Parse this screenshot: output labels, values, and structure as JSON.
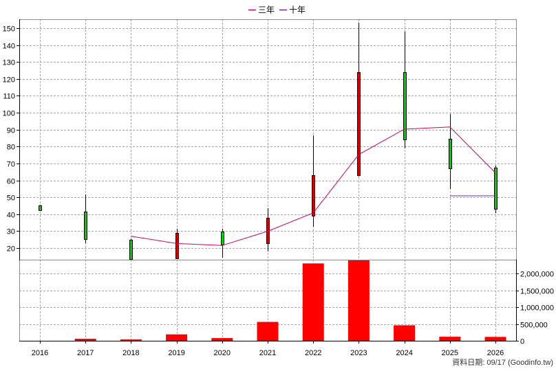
{
  "chart_data": {
    "type": "candlestick",
    "categories": [
      "2016",
      "2017",
      "2018",
      "2019",
      "2020",
      "2021",
      "2022",
      "2023",
      "2024",
      "2025",
      "2026"
    ],
    "ohlc": [
      {
        "open": 45.2,
        "high": 45.5,
        "low": 42.0,
        "close": 42.3
      },
      {
        "open": 41.5,
        "high": 51.7,
        "low": 22.8,
        "close": 25.3
      },
      {
        "open": 24.9,
        "high": 25.6,
        "low": 13.2,
        "close": 13.5
      },
      {
        "open": 13.9,
        "high": 31.4,
        "low": 13.5,
        "close": 28.9
      },
      {
        "open": 29.7,
        "high": 31.4,
        "low": 14.3,
        "close": 22.0
      },
      {
        "open": 22.8,
        "high": 43.6,
        "low": 18.0,
        "close": 37.9
      },
      {
        "open": 39.1,
        "high": 86.6,
        "low": 32.6,
        "close": 63.1
      },
      {
        "open": 63.1,
        "high": 153.3,
        "low": 62.3,
        "close": 124.0
      },
      {
        "open": 124.0,
        "high": 148.0,
        "low": 78.9,
        "close": 84.2
      },
      {
        "open": 84.6,
        "high": 99.2,
        "low": 54.9,
        "close": 67.1
      },
      {
        "open": 67.5,
        "high": 68.7,
        "low": 40.7,
        "close": 43.2
      }
    ],
    "series": [
      {
        "name": "三年",
        "type": "line",
        "color": "#cc0066",
        "values": [
          null,
          null,
          27.0,
          22.7,
          21.5,
          29.9,
          40.8,
          75.3,
          90.3,
          91.6,
          64.5
        ]
      },
      {
        "name": "十年",
        "type": "line",
        "color": "#6a2ca0",
        "values": [
          null,
          null,
          null,
          null,
          null,
          null,
          null,
          null,
          null,
          50.9,
          50.9
        ]
      }
    ],
    "ylim": [
      13.1,
      155.3
    ],
    "yticks": [
      150,
      140,
      130,
      120,
      110,
      100,
      90,
      80,
      70,
      60,
      50,
      40,
      30,
      20
    ],
    "ytick_labels": [
      "150",
      "140",
      "130",
      "120",
      "110",
      "100",
      "90",
      "80",
      "70",
      "60",
      "50",
      "40",
      "30",
      "20"
    ],
    "colors": {
      "up": "#d00000",
      "down": "#00d000",
      "wick": "#000000"
    },
    "grid": true,
    "legend": "top-center",
    "volume": {
      "type": "bar",
      "values": [
        0,
        60000,
        40000,
        190000,
        80000,
        560000,
        2300000,
        2390000,
        460000,
        120000,
        115000
      ],
      "color": "#ff0000",
      "ylim": [
        0,
        2410000
      ],
      "yticks": [
        2000000,
        1500000,
        1000000,
        500000,
        0
      ],
      "ytick_labels": [
        "2,000,000",
        "1,500,000",
        "1,000,000",
        "500,000",
        "0"
      ],
      "axis": "right"
    }
  },
  "footer": "資料日期: 09/17 (Goodinfo.tw)"
}
